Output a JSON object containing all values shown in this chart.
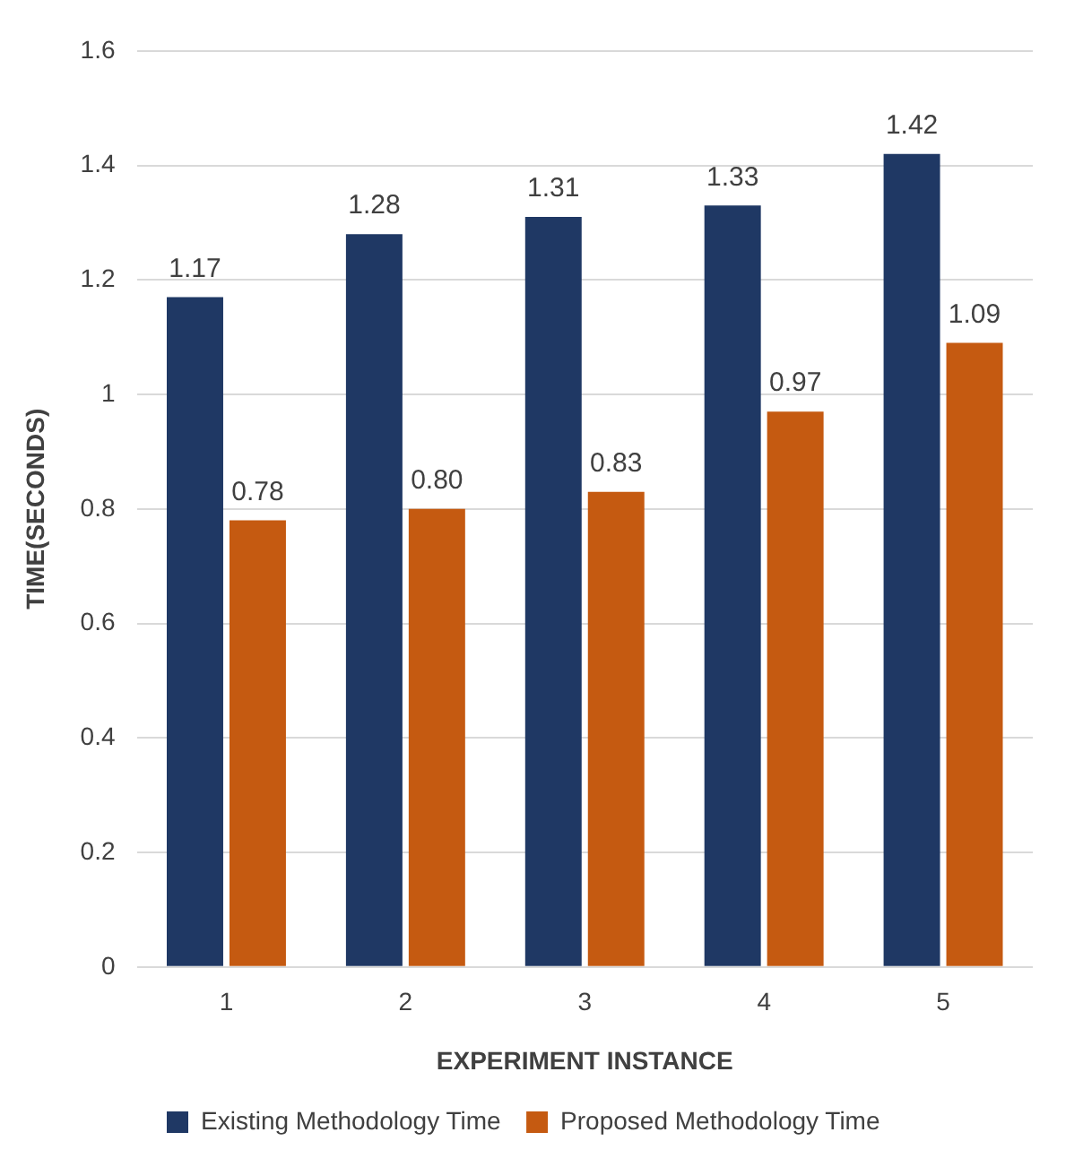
{
  "chart_data": {
    "type": "bar",
    "xlabel": "EXPERIMENT INSTANCE",
    "ylabel": "TIME(SECONDS)",
    "categories": [
      "1",
      "2",
      "3",
      "4",
      "5"
    ],
    "series": [
      {
        "name": "Existing Methodology Time",
        "color": "#1f3864",
        "values": [
          1.17,
          1.28,
          1.31,
          1.33,
          1.42
        ],
        "value_labels": [
          "1.17",
          "1.28",
          "1.31",
          "1.33",
          "1.42"
        ]
      },
      {
        "name": "Proposed Methodology Time",
        "color": "#c55a11",
        "values": [
          0.78,
          0.8,
          0.83,
          0.97,
          1.09
        ],
        "value_labels": [
          "0.78",
          "0.80",
          "0.83",
          "0.97",
          "1.09"
        ]
      }
    ],
    "ylim": [
      0,
      1.6
    ],
    "yticks": [
      0,
      0.2,
      0.4,
      0.6,
      0.8,
      1,
      1.2,
      1.4,
      1.6
    ],
    "grid": "y",
    "legend": "bottom"
  }
}
